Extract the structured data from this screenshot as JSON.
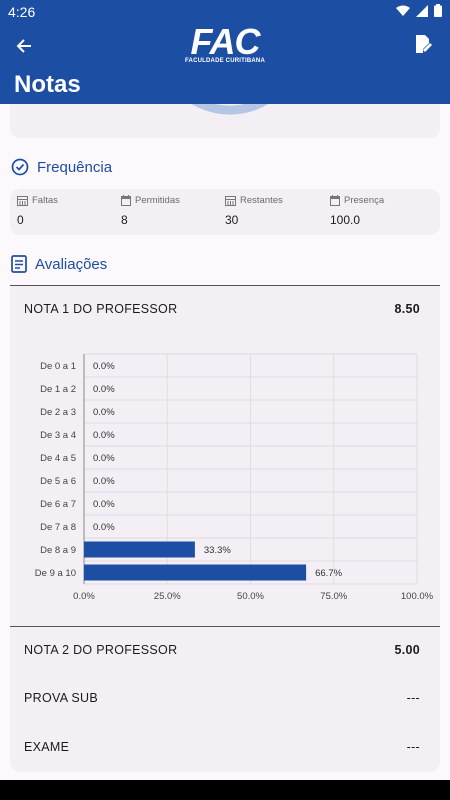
{
  "status_bar": {
    "time": "4:26"
  },
  "app_bar": {
    "logo_mark": "FAC",
    "logo_subtitle": "FACULDADE CURITIBANA",
    "title": "Notas"
  },
  "frequencia": {
    "title": "Frequência",
    "items": [
      {
        "label": "Faltas",
        "value": "0"
      },
      {
        "label": "Permitidas",
        "value": "8"
      },
      {
        "label": "Restantes",
        "value": "30"
      },
      {
        "label": "Presença",
        "value": "100.0"
      }
    ]
  },
  "avaliacoes": {
    "title": "Avaliações",
    "rows": [
      {
        "label": "NOTA 1 DO PROFESSOR",
        "value": "8.50"
      },
      {
        "label": "NOTA 2 DO PROFESSOR",
        "value": "5.00"
      },
      {
        "label": "PROVA SUB",
        "value": "---"
      },
      {
        "label": "EXAME",
        "value": "---"
      }
    ]
  },
  "chart_data": {
    "type": "bar",
    "orientation": "horizontal",
    "categories": [
      "De 0 a 1",
      "De 1 a 2",
      "De 2 a 3",
      "De 3 a 4",
      "De 4 a 5",
      "De 5 a 6",
      "De 6 a 7",
      "De 7 a 8",
      "De 8 a 9",
      "De 9 a 10"
    ],
    "values": [
      0.0,
      0.0,
      0.0,
      0.0,
      0.0,
      0.0,
      0.0,
      0.0,
      33.3,
      66.7
    ],
    "value_labels": [
      "0.0%",
      "0.0%",
      "0.0%",
      "0.0%",
      "0.0%",
      "0.0%",
      "0.0%",
      "0.0%",
      "33.3%",
      "66.7%"
    ],
    "x_ticks": [
      "0.0%",
      "25.0%",
      "50.0%",
      "75.0%",
      "100.0%"
    ],
    "xlim": [
      0,
      100
    ],
    "grid": true,
    "bar_color": "#1c4ea3"
  }
}
